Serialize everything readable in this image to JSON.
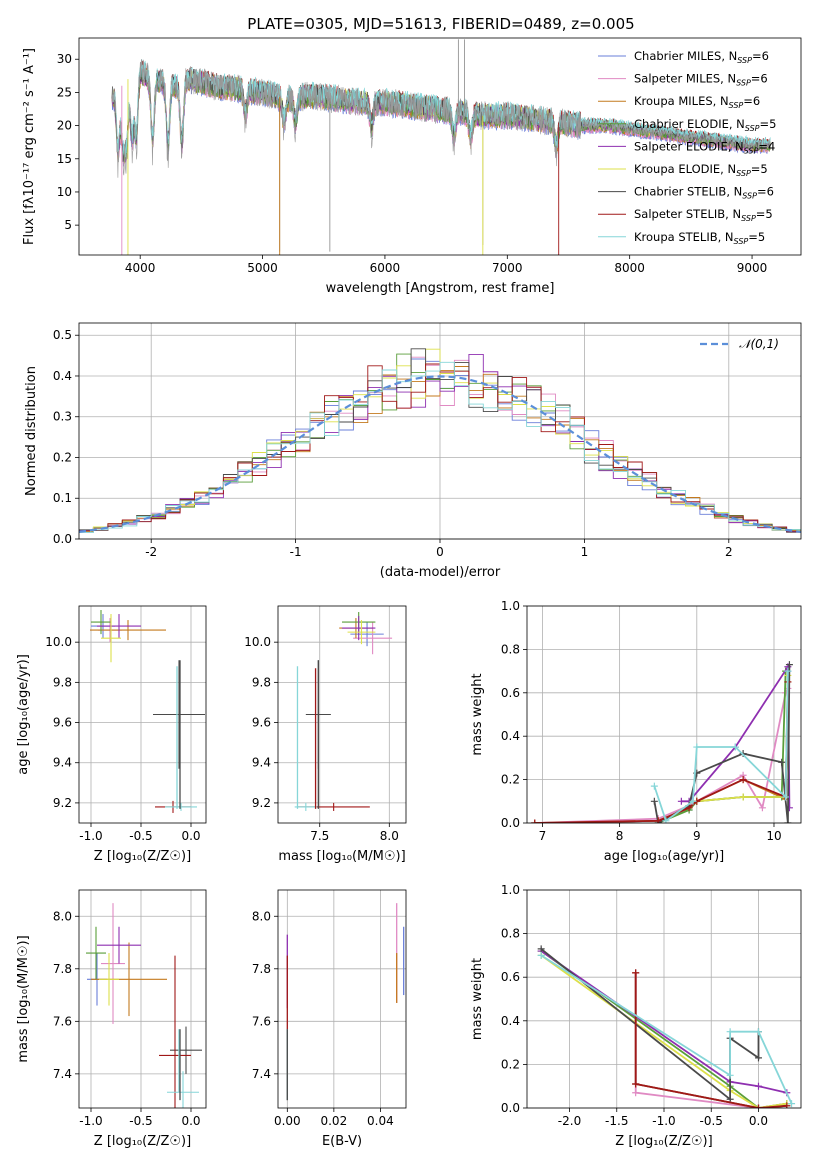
{
  "figure_title": "PLATE=0305, MJD=51613, FIBERID=0489, z=0.005",
  "model_names": [
    "Chabrier MILES",
    "Salpeter MILES",
    "Kroupa MILES",
    "Chabrier ELODIE",
    "Salpeter ELODIE",
    "Kroupa ELODIE",
    "Chabrier STELIB",
    "Salpeter STELIB",
    "Kroupa STELIB"
  ],
  "nssp": [
    6,
    6,
    6,
    5,
    4,
    5,
    6,
    5,
    5
  ],
  "colors": {
    "models": [
      "#6a7fd9",
      "#e08ac3",
      "#c47a1e",
      "#5a9e3a",
      "#8e2fb0",
      "#dde04a",
      "#4a4a4a",
      "#a01818",
      "#86d6d8"
    ],
    "observed": "#999999",
    "gaussian": "#5b8fd9",
    "grid": "#b0b0b0"
  },
  "chart_data": [
    {
      "type": "line",
      "title": "PLATE=0305, MJD=51613, FIBERID=0489, z=0.005",
      "xlabel": "wavelength [Angstrom, rest frame]",
      "ylabel": "Flux [fλ10⁻¹⁷ erg cm⁻² s⁻¹ A⁻¹]",
      "xlim": [
        3500,
        9400
      ],
      "ylim": [
        0.5,
        33.2
      ],
      "xticks": [
        4000,
        5000,
        6000,
        7000,
        8000,
        9000
      ],
      "yticks": [
        5,
        10,
        15,
        20,
        25,
        30
      ],
      "grid": false,
      "legend": "top-right",
      "continuum": {
        "x": [
          3770,
          3800,
          3850,
          3900,
          3950,
          4000,
          4100,
          4200,
          4300,
          4400,
          4500,
          4600,
          4800,
          5000,
          5200,
          5400,
          5600,
          5800,
          6000,
          6200,
          6400,
          6600,
          6800,
          7000,
          7200,
          7400,
          7600,
          7800,
          8000,
          8200,
          8400,
          8600,
          8800,
          9000,
          9150
        ],
        "y": [
          24,
          25,
          26,
          27,
          28,
          28,
          27,
          26.5,
          26,
          27,
          26.5,
          26,
          25.5,
          25,
          24,
          24.5,
          24,
          23.5,
          23.5,
          23,
          22.5,
          22,
          21.5,
          21.5,
          21,
          20.5,
          20,
          20,
          19.5,
          19,
          18.5,
          18,
          17.5,
          17,
          17
        ]
      },
      "absorption_lines": [
        3820,
        3860,
        3889,
        3933,
        3968,
        4101,
        4227,
        4340,
        4861,
        5175,
        5270,
        5890,
        6563,
        6700,
        7400
      ],
      "observed_features": [
        [
          5140,
          1
        ],
        [
          5550,
          1
        ],
        [
          6600,
          33
        ],
        [
          6650,
          33
        ],
        [
          6800,
          2
        ]
      ]
    },
    {
      "type": "bar",
      "xlabel": "(data-model)/error",
      "ylabel": "Normed distribution",
      "xlim": [
        -2.5,
        2.5
      ],
      "ylim": [
        0,
        0.53
      ],
      "xticks": [
        -2,
        -1,
        0,
        1,
        2
      ],
      "yticks": [
        0,
        0.1,
        0.2,
        0.3,
        0.4,
        0.5
      ],
      "grid": true,
      "legend": "top-right",
      "reference": "𝒩(0,1)",
      "bin_width": 0.1,
      "bin_start": -2.5
    },
    {
      "type": "scatter",
      "xlabel": "Z [log₁₀(Z/Z☉)]",
      "ylabel": "age  [log₁₀(age/yr)]",
      "xlim": [
        -1.12,
        0.15
      ],
      "ylim": [
        9.1,
        10.18
      ],
      "xticks": [
        -1.0,
        -0.5,
        0.0
      ],
      "yticks": [
        9.2,
        9.4,
        9.6,
        9.8,
        10.0
      ],
      "grid": true,
      "points": [
        {
          "m": 0,
          "x": -0.88,
          "xerr": 0.12,
          "y": 10.08,
          "yerr": 0.06
        },
        {
          "m": 1,
          "x": -0.81,
          "xerr": 0.12,
          "y": 10.06,
          "yerr": 0.06
        },
        {
          "m": 2,
          "x": -0.63,
          "xerr": 0.38,
          "y": 10.06,
          "yerr": 0.05
        },
        {
          "m": 3,
          "x": -0.9,
          "xerr": 0.1,
          "y": 10.1,
          "yerr": 0.06
        },
        {
          "m": 4,
          "x": -0.72,
          "xerr": 0.22,
          "y": 10.08,
          "yerr": 0.06
        },
        {
          "m": 5,
          "x": -0.8,
          "xerr": 0.1,
          "y": 10.02,
          "yerr": 0.12
        },
        {
          "m": 6,
          "x": -0.12,
          "xerr": 0.26,
          "y": 9.64,
          "yerr": 0.27
        },
        {
          "m": 7,
          "x": -0.18,
          "xerr": 0.18,
          "y": 9.18,
          "yerr": 0.03
        },
        {
          "m": 8,
          "x": -0.1,
          "xerr": 0.16,
          "y": 9.18,
          "yerr": 0.02
        }
      ],
      "vertical_bars": [
        {
          "m": 8,
          "x": -0.14,
          "y0": 9.17,
          "y1": 9.88
        },
        {
          "m": 6,
          "x": -0.11,
          "y0": 9.17,
          "y1": 9.91
        }
      ]
    },
    {
      "type": "scatter",
      "xlabel": "mass [log₁₀(M/M☉)]",
      "ylabel": "",
      "xlim": [
        7.2,
        8.12
      ],
      "ylim": [
        9.1,
        10.18
      ],
      "xticks": [
        7.5,
        8.0
      ],
      "yticks": [
        9.2,
        9.4,
        9.6,
        9.8,
        10.0
      ],
      "grid": true,
      "points": [
        {
          "m": 0,
          "x": 7.84,
          "xerr": 0.12,
          "y": 10.04,
          "yerr": 0.06
        },
        {
          "m": 1,
          "x": 7.88,
          "xerr": 0.14,
          "y": 10.02,
          "yerr": 0.08
        },
        {
          "m": 2,
          "x": 7.76,
          "xerr": 0.12,
          "y": 10.07,
          "yerr": 0.05
        },
        {
          "m": 3,
          "x": 7.78,
          "xerr": 0.12,
          "y": 10.1,
          "yerr": 0.05
        },
        {
          "m": 4,
          "x": 7.78,
          "xerr": 0.12,
          "y": 10.07,
          "yerr": 0.06
        },
        {
          "m": 5,
          "x": 7.8,
          "xerr": 0.1,
          "y": 10.05,
          "yerr": 0.06
        },
        {
          "m": 6,
          "x": 7.49,
          "xerr": 0.09,
          "y": 9.64,
          "yerr": 0.27
        },
        {
          "m": 7,
          "x": 7.6,
          "xerr": 0.26,
          "y": 9.18,
          "yerr": 0.02
        },
        {
          "m": 8,
          "x": 7.4,
          "xerr": 0.08,
          "y": 9.18,
          "yerr": 0.02
        }
      ],
      "vertical_bars": [
        {
          "m": 8,
          "x": 7.34,
          "y0": 9.17,
          "y1": 9.88
        },
        {
          "m": 7,
          "x": 7.47,
          "y0": 9.17,
          "y1": 9.87
        },
        {
          "m": 6,
          "x": 7.49,
          "y0": 9.17,
          "y1": 9.91
        }
      ]
    },
    {
      "type": "line",
      "xlabel": "age  [log₁₀(age/yr)]",
      "ylabel": "mass weight",
      "xlim": [
        6.8,
        10.35
      ],
      "ylim": [
        0,
        1
      ],
      "xticks": [
        7,
        8,
        9,
        10
      ],
      "yticks": [
        0,
        0.2,
        0.4,
        0.6,
        0.8,
        1.0
      ],
      "grid": true,
      "series": [
        {
          "m": 0,
          "x": [
            6.9,
            8.5,
            8.9,
            9.0,
            9.6,
            10.15,
            10.18
          ],
          "y": [
            0.0,
            0.01,
            0.06,
            0.1,
            0.12,
            0.12,
            0.7
          ]
        },
        {
          "m": 1,
          "x": [
            6.9,
            8.5,
            8.9,
            9.0,
            9.6,
            9.85,
            10.15,
            10.18
          ],
          "y": [
            0.0,
            0.02,
            0.08,
            0.1,
            0.22,
            0.07,
            0.6,
            0.62
          ]
        },
        {
          "m": 2,
          "x": [
            6.9,
            8.5,
            8.9,
            9.0,
            9.6,
            10.15,
            10.18
          ],
          "y": [
            0.0,
            0.01,
            0.07,
            0.1,
            0.2,
            0.11,
            0.65
          ]
        },
        {
          "m": 3,
          "x": [
            8.5,
            8.9,
            9.0,
            9.6,
            10.1,
            10.15
          ],
          "y": [
            0.0,
            0.06,
            0.1,
            0.12,
            0.12,
            0.7
          ]
        },
        {
          "m": 4,
          "x": [
            8.8,
            8.9,
            9.5,
            10.18,
            10.2
          ],
          "y": [
            0.1,
            0.1,
            0.35,
            0.72,
            0.07
          ]
        },
        {
          "m": 5,
          "x": [
            8.5,
            8.9,
            9.0,
            9.6,
            10.15,
            10.18
          ],
          "y": [
            0.01,
            0.07,
            0.1,
            0.12,
            0.12,
            0.68
          ]
        },
        {
          "m": 6,
          "x": [
            8.45,
            8.5,
            8.9,
            9.0,
            9.6,
            10.1,
            10.18,
            10.2
          ],
          "y": [
            0.1,
            0.0,
            0.08,
            0.23,
            0.32,
            0.28,
            0.0,
            0.73
          ]
        },
        {
          "m": 7,
          "x": [
            6.9,
            8.5,
            8.9,
            9.0,
            9.6,
            10.15,
            10.18
          ],
          "y": [
            0.0,
            0.01,
            0.07,
            0.1,
            0.2,
            0.12,
            0.65
          ]
        },
        {
          "m": 8,
          "x": [
            8.45,
            8.6,
            8.95,
            9.0,
            9.5,
            10.15,
            10.18
          ],
          "y": [
            0.17,
            0.01,
            0.1,
            0.35,
            0.35,
            0.12,
            0.7
          ]
        }
      ]
    },
    {
      "type": "scatter",
      "xlabel": "Z [log₁₀(Z/Z☉)]",
      "ylabel": "mass [log₁₀(M/M☉)]",
      "xlim": [
        -1.12,
        0.15
      ],
      "ylim": [
        7.27,
        8.1
      ],
      "xticks": [
        -1.0,
        -0.5,
        0.0
      ],
      "yticks": [
        7.4,
        7.6,
        7.8,
        8.0
      ],
      "grid": true,
      "points": [
        {
          "m": 0,
          "x": -0.94,
          "xerr": 0.1,
          "y": 7.76,
          "yerr": 0.1
        },
        {
          "m": 1,
          "x": -0.78,
          "xerr": 0.12,
          "y": 7.82,
          "yerr": 0.23
        },
        {
          "m": 2,
          "x": -0.62,
          "xerr": 0.38,
          "y": 7.76,
          "yerr": 0.14
        },
        {
          "m": 3,
          "x": -0.95,
          "xerr": 0.1,
          "y": 7.86,
          "yerr": 0.1
        },
        {
          "m": 4,
          "x": -0.72,
          "xerr": 0.22,
          "y": 7.89,
          "yerr": 0.07
        },
        {
          "m": 5,
          "x": -0.82,
          "xerr": 0.1,
          "y": 7.76,
          "yerr": 0.1
        },
        {
          "m": 6,
          "x": -0.05,
          "xerr": 0.16,
          "y": 7.49,
          "yerr": 0.09
        },
        {
          "m": 7,
          "x": -0.16,
          "xerr": 0.16,
          "y": 7.47,
          "yerr": 0.38
        },
        {
          "m": 8,
          "x": -0.08,
          "xerr": 0.16,
          "y": 7.33,
          "yerr": 0.08
        }
      ],
      "vertical_bars": [
        {
          "m": 8,
          "x": -0.12,
          "y0": 7.33,
          "y1": 7.57
        },
        {
          "m": 6,
          "x": -0.11,
          "y0": 7.3,
          "y1": 7.57
        }
      ]
    },
    {
      "type": "scatter",
      "xlabel": "E(B-V)",
      "ylabel": "",
      "xlim": [
        -0.004,
        0.051
      ],
      "ylim": [
        7.27,
        8.1
      ],
      "xticks": [
        0.0,
        0.02,
        0.04
      ],
      "yticks": [
        7.4,
        7.6,
        7.8,
        8.0
      ],
      "grid": true,
      "vertical_bars": [
        {
          "m": 1,
          "x": 0.047,
          "y0": 7.67,
          "y1": 8.05
        },
        {
          "m": 2,
          "x": 0.047,
          "y0": 7.67,
          "y1": 7.86
        },
        {
          "m": 0,
          "x": 0.05,
          "y0": 7.7,
          "y1": 7.96
        },
        {
          "m": 4,
          "x": 0.0,
          "y0": 7.65,
          "y1": 7.93
        },
        {
          "m": 7,
          "x": 0.0,
          "y0": 7.3,
          "y1": 7.85
        },
        {
          "m": 8,
          "x": 0.0,
          "y0": 7.3,
          "y1": 7.57
        },
        {
          "m": 6,
          "x": 0.0,
          "y0": 7.3,
          "y1": 7.57
        }
      ]
    },
    {
      "type": "line",
      "xlabel": "Z [log₁₀(Z/Z☉)]",
      "ylabel": "mass weight",
      "xlim": [
        -2.45,
        0.45
      ],
      "ylim": [
        0,
        1
      ],
      "xticks": [
        -2.0,
        -1.5,
        -1.0,
        -0.5,
        0.0
      ],
      "yticks": [
        0,
        0.2,
        0.4,
        0.6,
        0.8,
        1.0
      ],
      "grid": true,
      "series": [
        {
          "m": 0,
          "x": [
            -1.3,
            -1.3,
            0.0,
            0.3
          ],
          "y": [
            0.62,
            0.11,
            0.0,
            0.01
          ]
        },
        {
          "m": 1,
          "x": [
            -1.3,
            -1.3,
            0.0,
            0.3
          ],
          "y": [
            0.62,
            0.07,
            0.0,
            0.02
          ]
        },
        {
          "m": 2,
          "x": [
            -1.3,
            -1.3,
            0.0,
            0.3
          ],
          "y": [
            0.62,
            0.11,
            0.0,
            0.01
          ]
        },
        {
          "m": 3,
          "x": [
            -2.3,
            -0.3,
            0.0,
            0.3
          ],
          "y": [
            0.72,
            0.1,
            0.0,
            0.02
          ]
        },
        {
          "m": 4,
          "x": [
            -2.3,
            -0.3,
            0.0,
            0.3
          ],
          "y": [
            0.72,
            0.12,
            0.1,
            0.07
          ]
        },
        {
          "m": 5,
          "x": [
            -2.3,
            -0.3,
            0.0,
            0.3
          ],
          "y": [
            0.7,
            0.08,
            0.0,
            0.02
          ]
        },
        {
          "m": 6,
          "x": [
            -2.3,
            -0.3,
            -0.3,
            0.0,
            0.0
          ],
          "y": [
            0.73,
            0.04,
            0.32,
            0.23,
            0.35
          ]
        },
        {
          "m": 7,
          "x": [
            -1.3,
            -1.3,
            0.0,
            0.3
          ],
          "y": [
            0.62,
            0.11,
            0.0,
            0.01
          ]
        },
        {
          "m": 8,
          "x": [
            -2.3,
            -0.3,
            -0.3,
            0.0,
            0.35
          ],
          "y": [
            0.7,
            0.15,
            0.35,
            0.35,
            0.02
          ]
        }
      ]
    }
  ]
}
